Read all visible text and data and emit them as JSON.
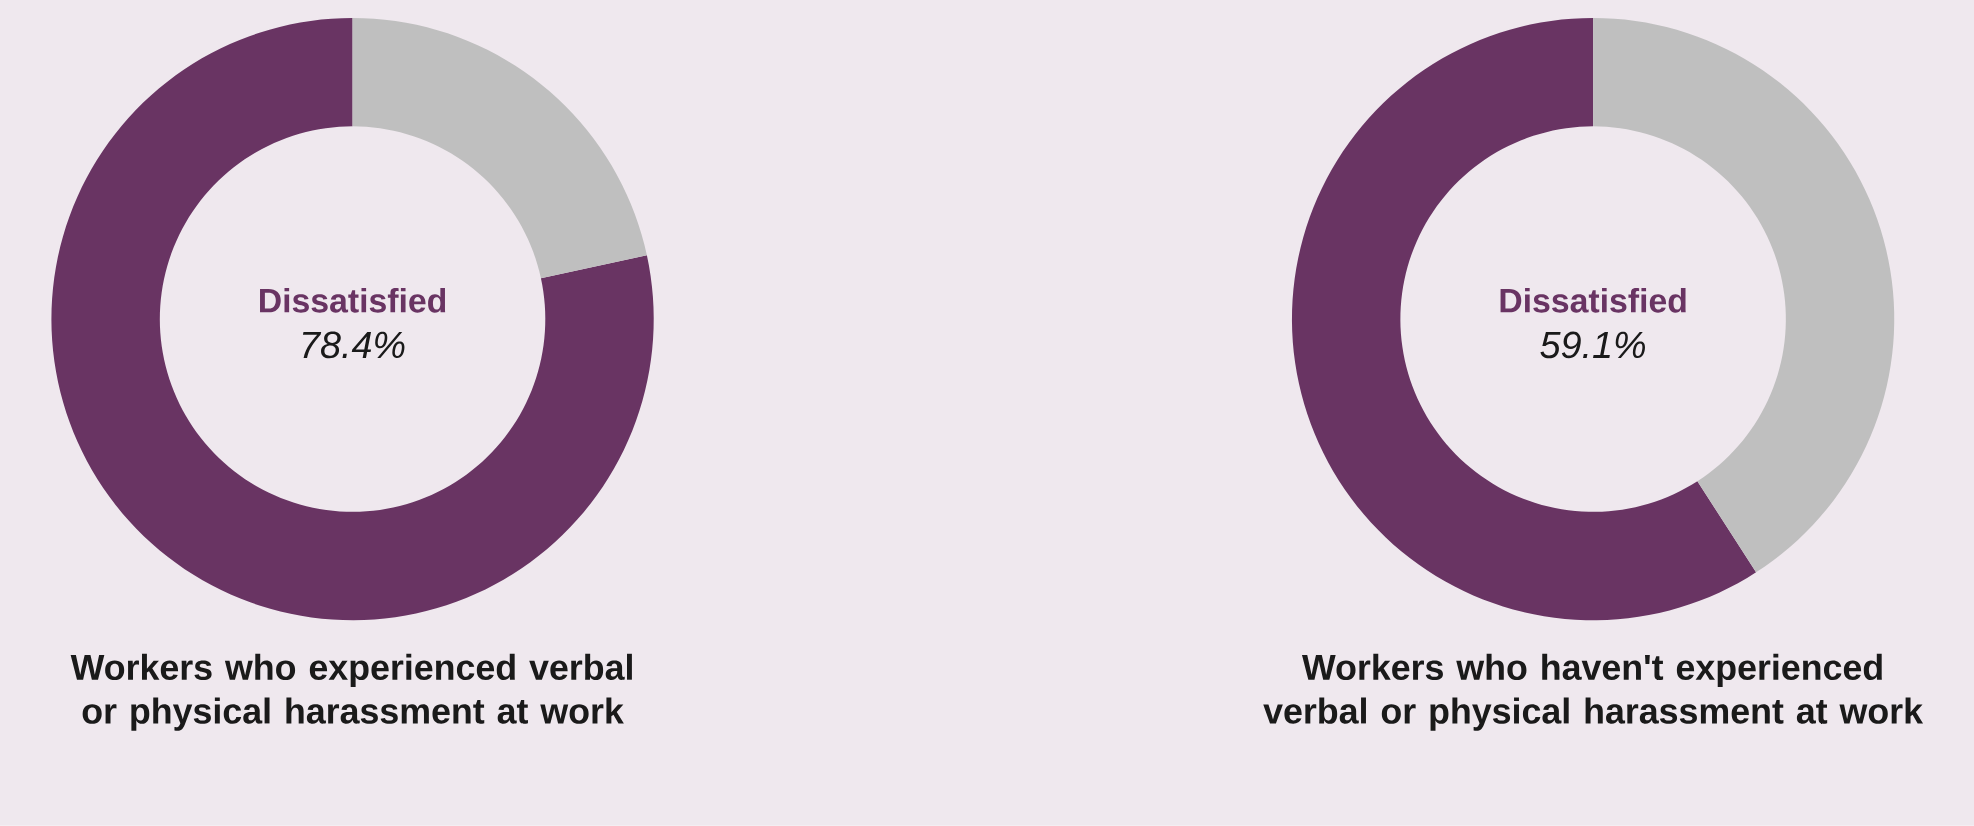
{
  "chart_data": [
    {
      "type": "donut",
      "title": "Workers who experienced verbal or physical harassment at work",
      "categories": [
        "Dissatisfied",
        null
      ],
      "values": [
        78.4,
        21.6
      ],
      "colors": [
        "#693463",
        "#bfbfbf"
      ],
      "value_labels": [
        "78.4%",
        null
      ]
    },
    {
      "type": "donut",
      "title": "Workers who haven't experienced verbal or physical harassment at work",
      "categories": [
        "Dissatisfied",
        null
      ],
      "values": [
        59.1,
        40.9
      ],
      "colors": [
        "#693463",
        "#bfbfbf"
      ],
      "value_labels": [
        "59.1%",
        null
      ]
    }
  ]
}
